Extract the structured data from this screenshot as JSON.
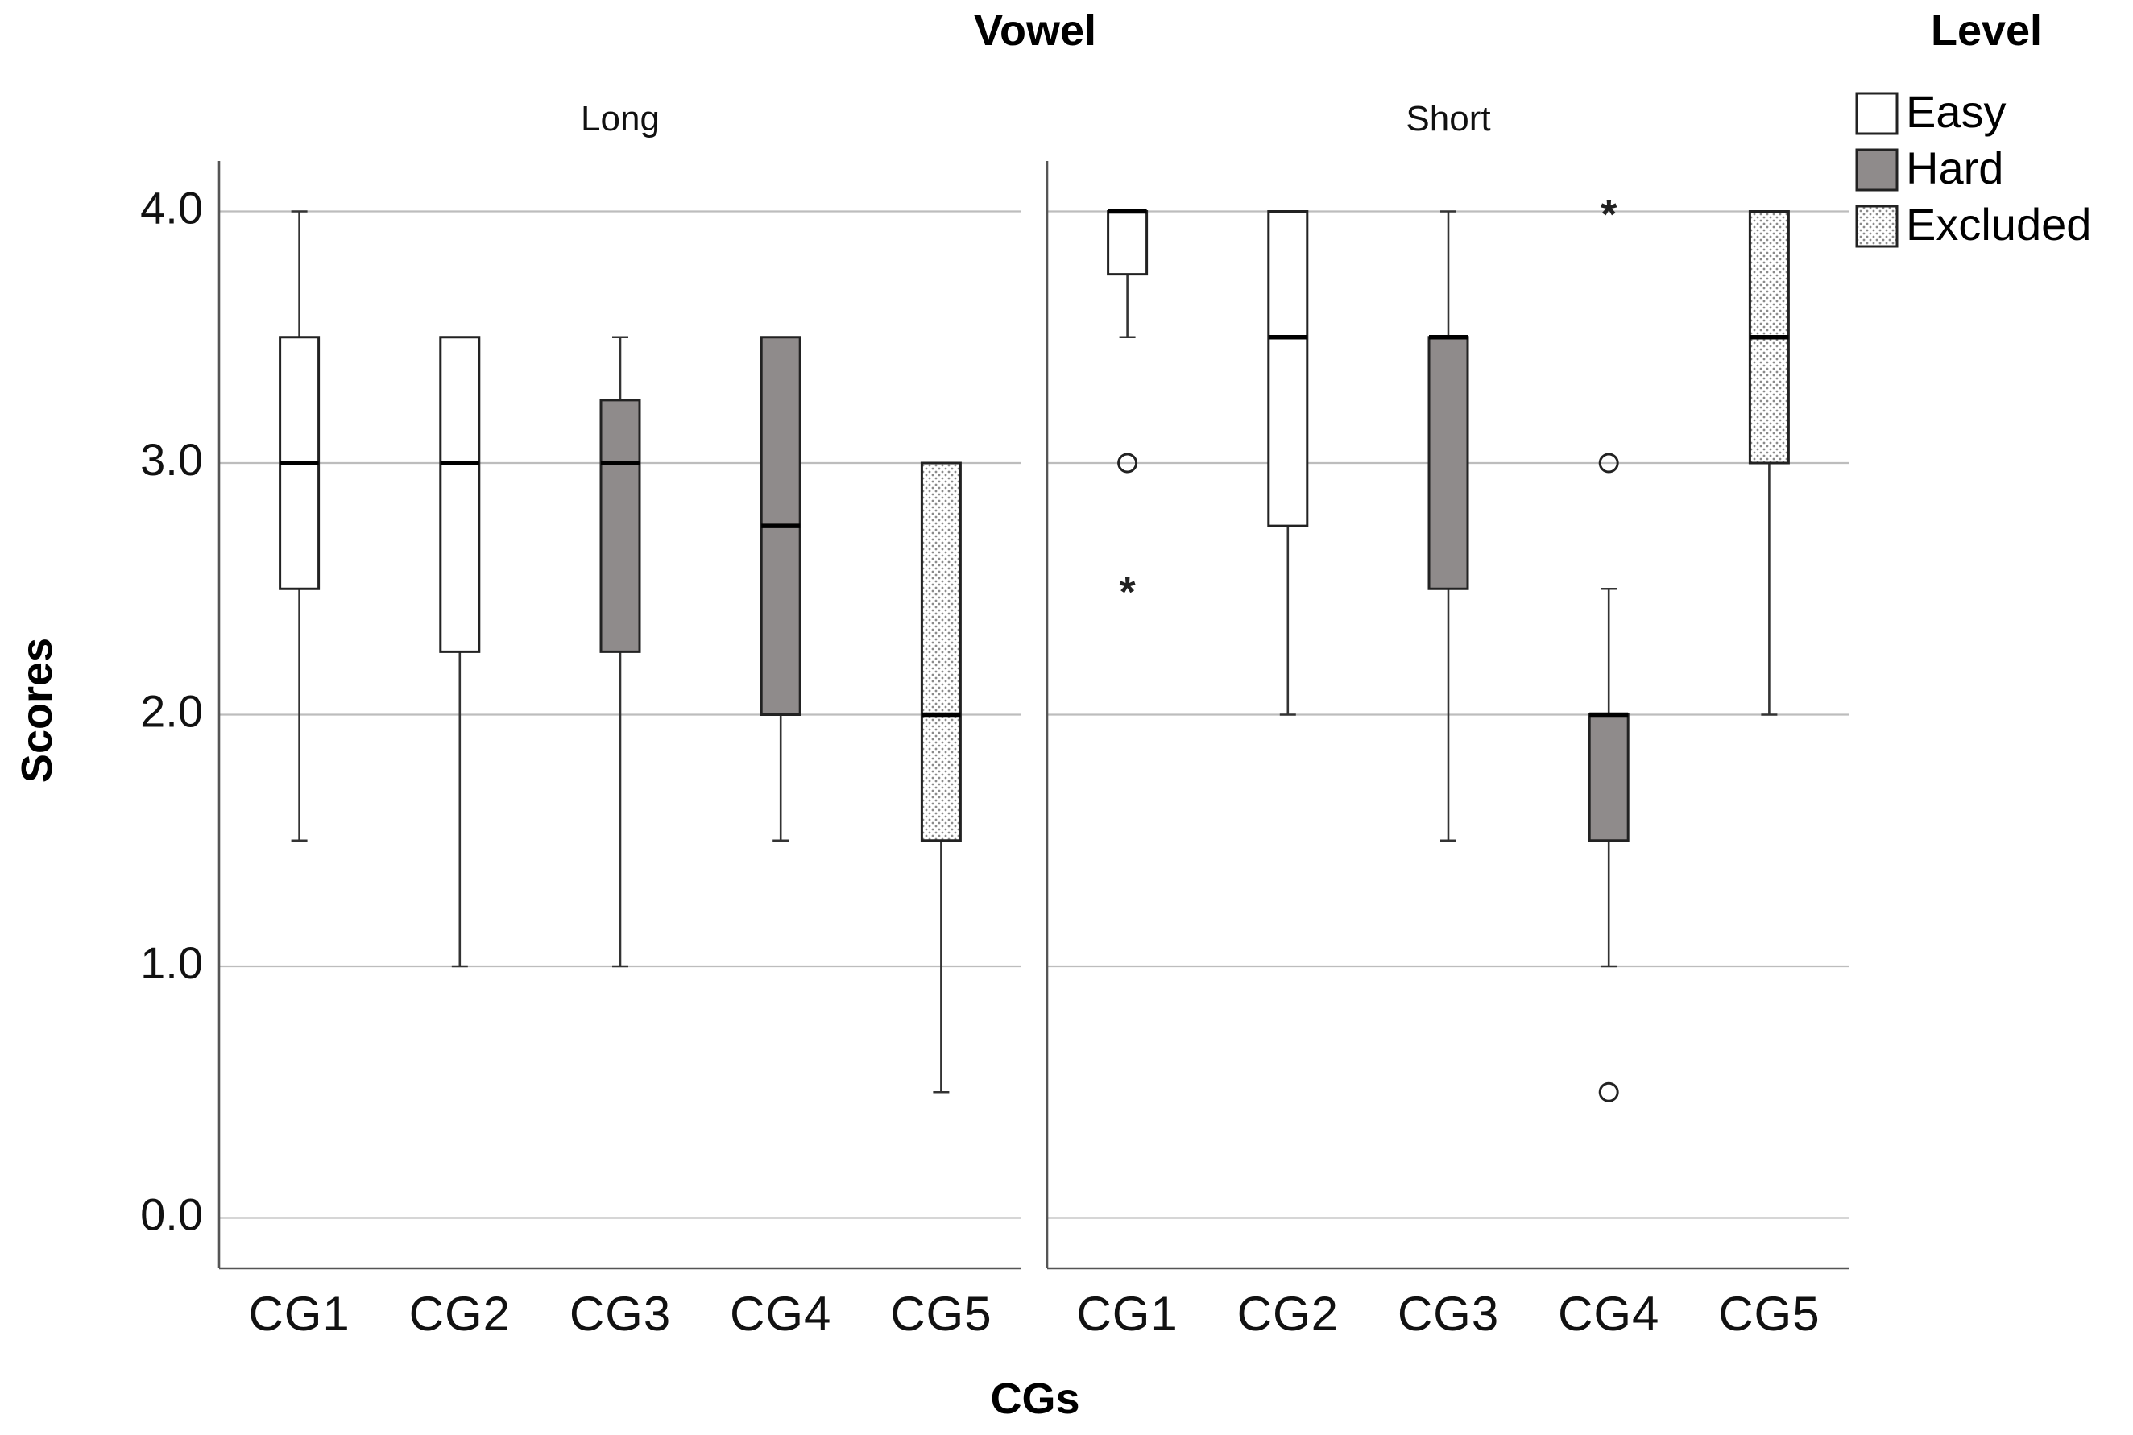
{
  "chart_data": {
    "type": "boxplot",
    "title": "Vowel",
    "xlabel": "CGs",
    "ylabel": "Scores",
    "ylim": [
      -0.2,
      4.2
    ],
    "yticks": [
      0,
      1,
      2,
      3,
      4
    ],
    "yticklabels": [
      "0.0",
      "1.0",
      "2.0",
      "3.0",
      "4.0"
    ],
    "grid": true,
    "legend": {
      "title": "Level",
      "placement": "top-right",
      "entries": [
        {
          "name": "Easy",
          "fill": "#ffffff"
        },
        {
          "name": "Hard",
          "fill": "#8f8b8b"
        },
        {
          "name": "Excluded",
          "fill": "dotted"
        }
      ]
    },
    "facets": [
      {
        "label": "Long",
        "groups": [
          {
            "category": "CG1",
            "level": "Easy",
            "min": 1.5,
            "q1": 2.5,
            "median": 3.0,
            "q3": 3.5,
            "max": 4.0,
            "outliers": [],
            "extremes": []
          },
          {
            "category": "CG2",
            "level": "Easy",
            "min": 1.0,
            "q1": 2.25,
            "median": 3.0,
            "q3": 3.5,
            "max": 3.5,
            "outliers": [],
            "extremes": []
          },
          {
            "category": "CG3",
            "level": "Hard",
            "min": 1.0,
            "q1": 2.25,
            "median": 3.0,
            "q3": 3.25,
            "max": 3.5,
            "outliers": [],
            "extremes": []
          },
          {
            "category": "CG4",
            "level": "Hard",
            "min": 1.5,
            "q1": 2.0,
            "median": 2.75,
            "q3": 3.5,
            "max": 3.5,
            "outliers": [],
            "extremes": []
          },
          {
            "category": "CG5",
            "level": "Excluded",
            "min": 0.5,
            "q1": 1.5,
            "median": 2.0,
            "q3": 3.0,
            "max": 3.0,
            "outliers": [],
            "extremes": []
          }
        ]
      },
      {
        "label": "Short",
        "groups": [
          {
            "category": "CG1",
            "level": "Easy",
            "min": 3.5,
            "q1": 3.75,
            "median": 4.0,
            "q3": 4.0,
            "max": 4.0,
            "outliers": [
              3.0
            ],
            "extremes": [
              2.5
            ]
          },
          {
            "category": "CG2",
            "level": "Easy",
            "min": 2.0,
            "q1": 2.75,
            "median": 3.5,
            "q3": 4.0,
            "max": 4.0,
            "outliers": [],
            "extremes": []
          },
          {
            "category": "CG3",
            "level": "Hard",
            "min": 1.5,
            "q1": 2.5,
            "median": 3.5,
            "q3": 3.5,
            "max": 4.0,
            "outliers": [],
            "extremes": []
          },
          {
            "category": "CG4",
            "level": "Hard",
            "min": 1.0,
            "q1": 1.5,
            "median": 2.0,
            "q3": 2.0,
            "max": 2.5,
            "outliers": [
              3.0,
              0.5
            ],
            "extremes": [
              4.0
            ]
          },
          {
            "category": "CG5",
            "level": "Excluded",
            "min": 2.0,
            "q1": 3.0,
            "median": 3.5,
            "q3": 4.0,
            "max": 4.0,
            "outliers": [],
            "extremes": []
          }
        ]
      }
    ]
  }
}
